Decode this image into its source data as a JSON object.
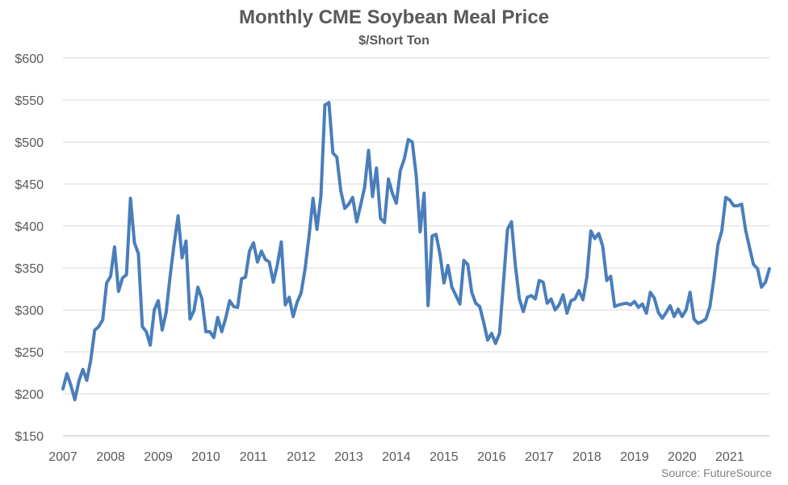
{
  "title": "Monthly CME Soybean Meal Price",
  "subtitle": "$/Short Ton",
  "source": "Source: FutureSource",
  "colors": {
    "line": "#4a7ebb",
    "grid": "#d9d9d9",
    "text": "#595959"
  },
  "chart_data": {
    "type": "line",
    "title": "Monthly CME Soybean Meal Price",
    "subtitle": "$/Short Ton",
    "ylim": [
      150,
      600
    ],
    "y_ticks": [
      150,
      200,
      250,
      300,
      350,
      400,
      450,
      500,
      550,
      600
    ],
    "y_tick_labels": [
      "$150",
      "$200",
      "$250",
      "$300",
      "$350",
      "$400",
      "$450",
      "$500",
      "$550",
      "$600"
    ],
    "x_tick_labels": [
      "2007",
      "2008",
      "2009",
      "2010",
      "2011",
      "2012",
      "2013",
      "2014",
      "2015",
      "2016",
      "2017",
      "2018",
      "2019",
      "2020",
      "2021"
    ],
    "x_start": 2007,
    "grid": true,
    "legend": "none",
    "series": [
      {
        "values": [
          206,
          224,
          210,
          193,
          215,
          229,
          216,
          240,
          276,
          280,
          288,
          332,
          340,
          375,
          322,
          338,
          342,
          433,
          380,
          367,
          280,
          274,
          258,
          300,
          311,
          276,
          297,
          340,
          378,
          412,
          362,
          382,
          289,
          299,
          327,
          313,
          274,
          274,
          267,
          291,
          274,
          290,
          311,
          304,
          303,
          337,
          339,
          370,
          380,
          357,
          370,
          360,
          357,
          333,
          353,
          381,
          306,
          315,
          292,
          309,
          320,
          349,
          388,
          433,
          396,
          436,
          544,
          547,
          487,
          482,
          442,
          421,
          426,
          434,
          405,
          425,
          446,
          490,
          435,
          469,
          409,
          404,
          456,
          439,
          427,
          466,
          480,
          503,
          500,
          460,
          393,
          439,
          305,
          388,
          390,
          366,
          332,
          353,
          327,
          317,
          307,
          359,
          354,
          321,
          308,
          304,
          285,
          264,
          272,
          260,
          272,
          333,
          396,
          405,
          352,
          313,
          298,
          315,
          317,
          313,
          335,
          333,
          308,
          313,
          300,
          306,
          318,
          296,
          311,
          313,
          323,
          312,
          339,
          394,
          385,
          391,
          376,
          335,
          340,
          304,
          306,
          307,
          308,
          306,
          310,
          303,
          307,
          296,
          321,
          314,
          297,
          290,
          297,
          305,
          292,
          301,
          292,
          300,
          321,
          289,
          284,
          286,
          289,
          304,
          337,
          377,
          394,
          434,
          431,
          424,
          424,
          426,
          395,
          374,
          354,
          349,
          327,
          333,
          349
        ]
      }
    ]
  }
}
